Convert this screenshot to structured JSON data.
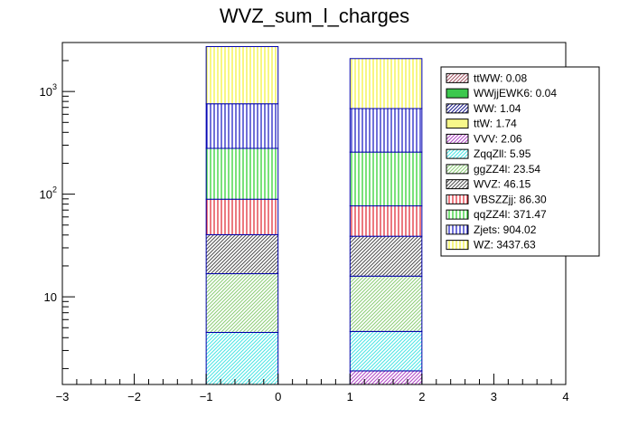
{
  "chart_data": {
    "type": "bar",
    "stacked": true,
    "title": "WVZ_sum_l_charges",
    "xlabel": "",
    "ylabel": "",
    "xlim": [
      -3,
      4
    ],
    "ylim": [
      1.4,
      3000
    ],
    "yscale": "log",
    "grid": false,
    "legend_position": "top-right",
    "x_ticks": [
      "−3",
      "−2",
      "−1",
      "0",
      "1",
      "2",
      "3",
      "4"
    ],
    "y_ticks": [
      {
        "value": 10,
        "base": "10",
        "exp": ""
      },
      {
        "value": 100,
        "base": "10",
        "exp": "2"
      },
      {
        "value": 1000,
        "base": "10",
        "exp": "3"
      }
    ],
    "bins": [
      [
        -1,
        0
      ],
      [
        1,
        2
      ]
    ],
    "series": [
      {
        "name": "ttWW",
        "legend": "ttWW: 0.08",
        "color": "#a85a6a",
        "hatch": "diag",
        "values": [
          0,
          0
        ]
      },
      {
        "name": "WWjjEWK6",
        "legend": "WWjjEWK6: 0.04",
        "color": "#3cc84e",
        "hatch": "solid",
        "values": [
          0,
          0
        ]
      },
      {
        "name": "WW",
        "legend": "WW: 1.04",
        "color": "#1f1f8f",
        "hatch": "diag",
        "values": [
          0,
          0
        ]
      },
      {
        "name": "ttW",
        "legend": "ttW: 1.74",
        "color": "#f7f78a",
        "hatch": "solid",
        "values": [
          0,
          0
        ]
      },
      {
        "name": "VVV",
        "legend": "VVV: 2.06",
        "color": "#b44cc8",
        "hatch": "diag",
        "values": [
          1.4,
          1.9
        ]
      },
      {
        "name": "ZqqZll",
        "legend": "ZqqZll: 5.95",
        "color": "#4ee6e6",
        "hatch": "diag",
        "values": [
          3.1,
          2.7
        ]
      },
      {
        "name": "ggZZ4l",
        "legend": "ggZZ4l: 23.54",
        "color": "#8fcf7a",
        "hatch": "diag",
        "values": [
          12.3,
          11.3
        ]
      },
      {
        "name": "WVZ",
        "legend": "WVZ: 46.15",
        "color": "#555555",
        "hatch": "diag",
        "values": [
          23.5,
          23
        ]
      },
      {
        "name": "VBSZZjj",
        "legend": "VBSZZjj: 86.30",
        "color": "#e0202c",
        "hatch": "vert",
        "values": [
          49,
          38
        ]
      },
      {
        "name": "qqZZ4l",
        "legend": "qqZZ4l: 371.47",
        "color": "#22d022",
        "hatch": "vert",
        "values": [
          190,
          180
        ]
      },
      {
        "name": "Zjets",
        "legend": "Zjets: 904.02",
        "color": "#1010c0",
        "hatch": "vert",
        "values": [
          480,
          425
        ]
      },
      {
        "name": "WZ",
        "legend": "WZ: 3437.63",
        "color": "#f2f230",
        "hatch": "vert",
        "values": [
          1980,
          1410
        ]
      }
    ]
  }
}
